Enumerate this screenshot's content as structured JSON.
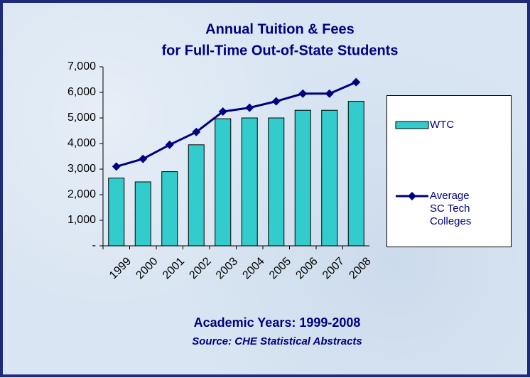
{
  "chart_data": {
    "type": "bar",
    "title": "Annual Tuition & Fees",
    "subtitle": "for Full-Time Out-of-State Students",
    "x_label": "Academic Years: 1999-2008",
    "source": "Source: CHE Statistical Abstracts",
    "categories": [
      "1999",
      "2000",
      "2001",
      "2002",
      "2003",
      "2004",
      "2005",
      "2006",
      "2007",
      "2008"
    ],
    "series": [
      {
        "name": "WTC",
        "type": "bar",
        "color": "#33cccc",
        "values": [
          2650,
          2500,
          2900,
          3950,
          4970,
          5000,
          5000,
          5300,
          5300,
          5650
        ]
      },
      {
        "name": "Average SC Tech Colleges",
        "type": "line",
        "color": "#000080",
        "values": [
          3100,
          3400,
          3950,
          4450,
          5250,
          5400,
          5650,
          5950,
          5950,
          6400
        ]
      }
    ],
    "ylim": [
      0,
      7000
    ],
    "yticks": [
      {
        "value": 0,
        "label": "-"
      },
      {
        "value": 1000,
        "label": "1,000"
      },
      {
        "value": 2000,
        "label": "2,000"
      },
      {
        "value": 3000,
        "label": "3,000"
      },
      {
        "value": 4000,
        "label": "4,000"
      },
      {
        "value": 5000,
        "label": "5,000"
      },
      {
        "value": 6000,
        "label": "6,000"
      },
      {
        "value": 7000,
        "label": "7,000"
      }
    ],
    "grid": false,
    "legend": "right"
  }
}
